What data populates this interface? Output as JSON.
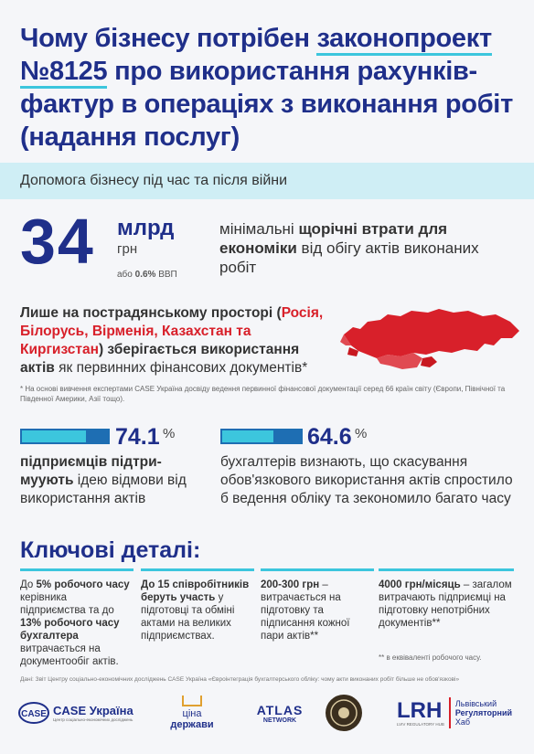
{
  "title": {
    "line1_pre": "Чому бізнесу потрібен ",
    "line1_hl": "законопроект",
    "line2_hl": "№8125",
    "line2_rest": " про використання рахунків-",
    "line3": "фактур в операціях з виконання робіт",
    "line4": "(надання послуг)"
  },
  "banner": "Допомога бізнесу під час та після війни",
  "loss": {
    "number": "34",
    "unit": "млрд",
    "currency": "грн",
    "gdp_pre": "або ",
    "gdp_value": "0.6%",
    "gdp_post": " ВВП",
    "desc_1": "мінімальні ",
    "desc_2": "щорічні втрати для економіки",
    "desc_3": " від обігу актів виконаних робіт"
  },
  "post_soviet": {
    "t1": "Лише на пострадянському просторі (",
    "countries": "Росія, Білорусь, Вірменія, Казахстан та Киргизстан",
    "t2": ") зберігається використання ",
    "t3": "актів",
    "t4": " як первинних фінансових документів*"
  },
  "footnote1": "* На основі вивчення експертами CASE Україна досвіду ведення первинної фінансової документації серед 66 країн світу (Європи, Північної та Південної Америки, Азії тощо).",
  "stats": [
    {
      "value": 74.1,
      "value_label": "74.1",
      "sign": "%",
      "bold": "підприємців підтри-муують",
      "rest": " ідею відмови від використання актів"
    },
    {
      "value": 64.6,
      "value_label": "64.6",
      "sign": "%",
      "bold": "",
      "rest": "бухгалтерів визнають, що скасування обов'язкового використання актів спростило б ведення обліку та зекономило багато часу"
    }
  ],
  "key_title": "Ключові деталі:",
  "details": [
    {
      "a": "До ",
      "b": "5% робочого часу",
      "c": " керівника підприємства та до ",
      "d": "13% робочого часу бухгалтера",
      "e": " витрачається на документообіг актів."
    },
    {
      "a": "",
      "b": "До 15 співробітників беруть участь",
      "c": " у підготовці та обміні актами на великих підприємствах.",
      "d": "",
      "e": ""
    },
    {
      "a": "",
      "b": "200-300 грн",
      "c": " – витрачається на підготовку та підписання кожної пари актів**",
      "d": "",
      "e": ""
    },
    {
      "a": "",
      "b": "4000 грн/місяць",
      "c": " – загалом витрачають підприємці на підготовку непотрібних документів**",
      "d": "",
      "e": ""
    }
  ],
  "note2": "** в еквіваленті робочого часу.",
  "source": "Дані: Звіт Центру соціально-економічних досліджень CASE Україна «Євроінтеграція бухгалтерського обліку: чому акти виконаних робіт більше не обов'язкові»",
  "logos": {
    "case": "CASE Україна",
    "case_sub": "Центр соціально-економічних досліджень",
    "tsina_1": "ціна",
    "tsina_2": "держави",
    "atlas_1": "ATLAS",
    "atlas_2": "NETWORK",
    "lrh": "LRH",
    "lrh_1": "Львівський",
    "lrh_2": "Регуляторний",
    "lrh_3": "Хаб",
    "lrh_sub": "LVIV REGULATORY HUB"
  },
  "colors": {
    "navy": "#1f2f8a",
    "cyan": "#3cc6dd",
    "red": "#d8202a",
    "blue": "#1e6eb3"
  }
}
